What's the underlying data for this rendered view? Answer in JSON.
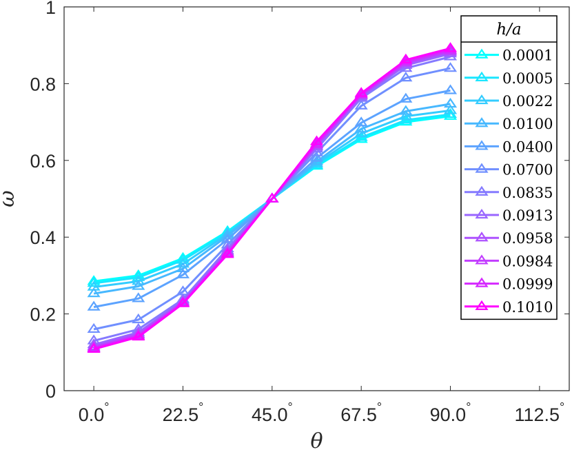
{
  "chart_data": {
    "type": "line",
    "xlabel": "θ",
    "ylabel": "ω",
    "xlim": [
      -7.5,
      120
    ],
    "ylim": [
      0,
      1
    ],
    "x_ticks": [
      0,
      22.5,
      45,
      67.5,
      90,
      112.5
    ],
    "x_tick_labels": [
      "0.0",
      "22.5",
      "45.0",
      "67.5",
      "90.0",
      "112.5"
    ],
    "x_tick_suffix": "°",
    "y_ticks": [
      0,
      0.2,
      0.4,
      0.6,
      0.8,
      1
    ],
    "y_tick_labels": [
      "0",
      "0.2",
      "0.4",
      "0.6",
      "0.8",
      "1"
    ],
    "grid": false,
    "legend_title": "h/a",
    "legend_position": "top-right",
    "x": [
      0,
      11.25,
      22.5,
      33.75,
      45,
      56.25,
      67.5,
      78.75,
      90
    ],
    "series": [
      {
        "name": "0.0001",
        "color": "#00ffff",
        "values": [
          0.285,
          0.3,
          0.345,
          0.415,
          0.5,
          0.585,
          0.655,
          0.7,
          0.715
        ]
      },
      {
        "name": "0.0005",
        "color": "#1ae6ff",
        "values": [
          0.28,
          0.295,
          0.34,
          0.412,
          0.5,
          0.588,
          0.66,
          0.705,
          0.72
        ]
      },
      {
        "name": "0.0022",
        "color": "#33ccff",
        "values": [
          0.27,
          0.285,
          0.33,
          0.408,
          0.5,
          0.592,
          0.67,
          0.715,
          0.73
        ]
      },
      {
        "name": "0.0100",
        "color": "#47b8ff",
        "values": [
          0.253,
          0.272,
          0.318,
          0.403,
          0.5,
          0.597,
          0.682,
          0.728,
          0.747
        ]
      },
      {
        "name": "0.0400",
        "color": "#5ca3ff",
        "values": [
          0.218,
          0.24,
          0.302,
          0.394,
          0.5,
          0.606,
          0.698,
          0.76,
          0.782
        ]
      },
      {
        "name": "0.0700",
        "color": "#708fff",
        "values": [
          0.16,
          0.185,
          0.258,
          0.38,
          0.5,
          0.62,
          0.742,
          0.815,
          0.84
        ]
      },
      {
        "name": "0.0835",
        "color": "#857aff",
        "values": [
          0.13,
          0.16,
          0.238,
          0.37,
          0.5,
          0.63,
          0.762,
          0.84,
          0.87
        ]
      },
      {
        "name": "0.0913",
        "color": "#9966ff",
        "values": [
          0.12,
          0.152,
          0.234,
          0.365,
          0.5,
          0.635,
          0.766,
          0.848,
          0.878
        ]
      },
      {
        "name": "0.0958",
        "color": "#ad52ff",
        "values": [
          0.115,
          0.148,
          0.231,
          0.362,
          0.5,
          0.638,
          0.769,
          0.852,
          0.882
        ]
      },
      {
        "name": "0.0984",
        "color": "#c23dff",
        "values": [
          0.112,
          0.145,
          0.229,
          0.359,
          0.5,
          0.641,
          0.771,
          0.855,
          0.885
        ]
      },
      {
        "name": "0.0999",
        "color": "#d629ff",
        "values": [
          0.11,
          0.142,
          0.228,
          0.357,
          0.5,
          0.643,
          0.772,
          0.858,
          0.888
        ]
      },
      {
        "name": "0.1010",
        "color": "#ff00ff",
        "values": [
          0.108,
          0.14,
          0.227,
          0.355,
          0.5,
          0.649,
          0.775,
          0.862,
          0.892
        ]
      }
    ]
  }
}
